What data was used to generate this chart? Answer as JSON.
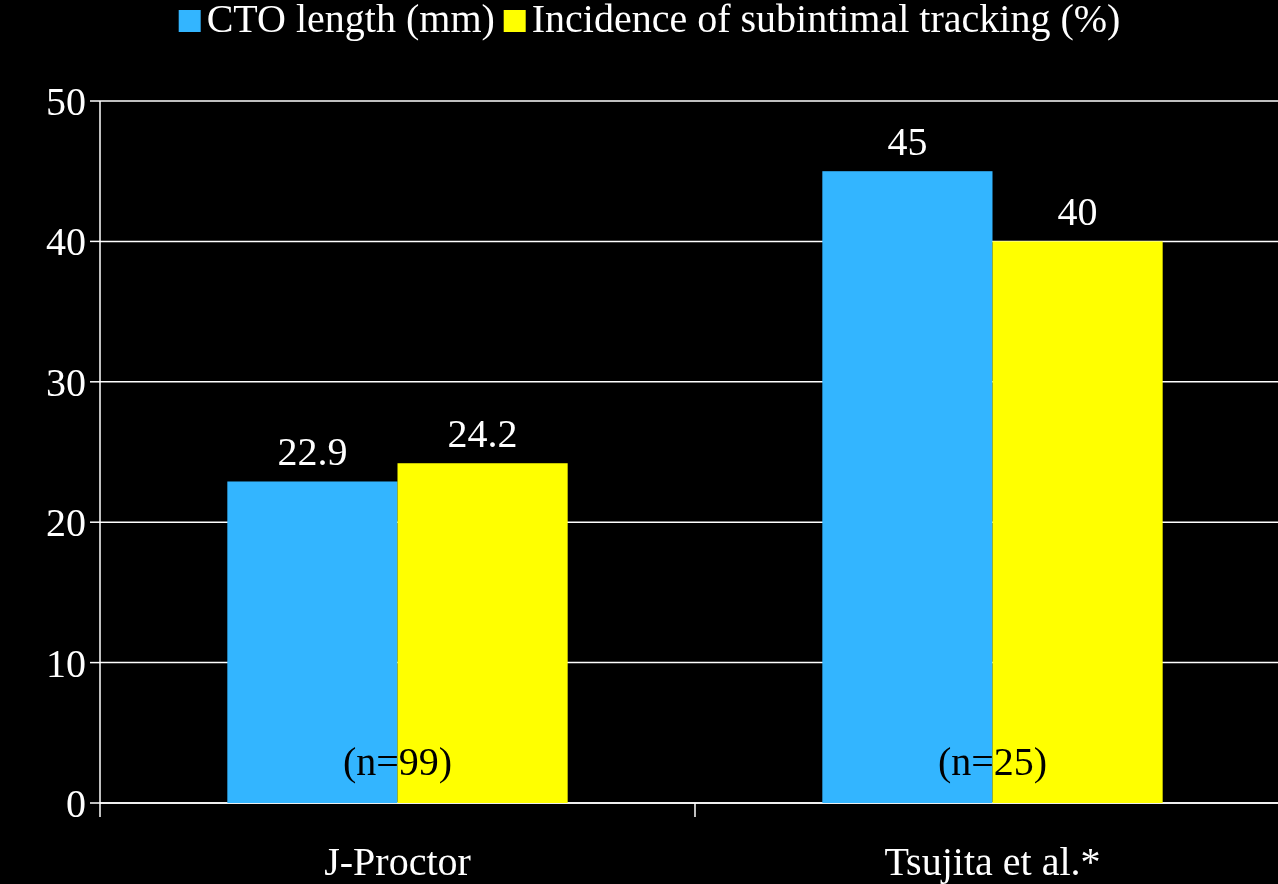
{
  "chart_data": {
    "type": "bar",
    "categories": [
      "J-Proctor",
      "Tsujita et al.*"
    ],
    "series": [
      {
        "name": "CTO length (mm)",
        "color": "#33b5ff",
        "values": [
          22.9,
          45
        ]
      },
      {
        "name": "Incidence of subintimal tracking (%)",
        "color": "#ffff00",
        "values": [
          24.2,
          40
        ]
      }
    ],
    "ylim": [
      0,
      50
    ],
    "yticks": [
      0,
      10,
      20,
      30,
      40,
      50
    ],
    "grid": "y",
    "legend": "top",
    "data_labels": true,
    "annotations": [
      {
        "text": "(n=99)",
        "x": "J-Proctor",
        "y": 3
      },
      {
        "text": "(n=25)",
        "x": "Tsujita et al.*",
        "y": 3
      }
    ]
  }
}
